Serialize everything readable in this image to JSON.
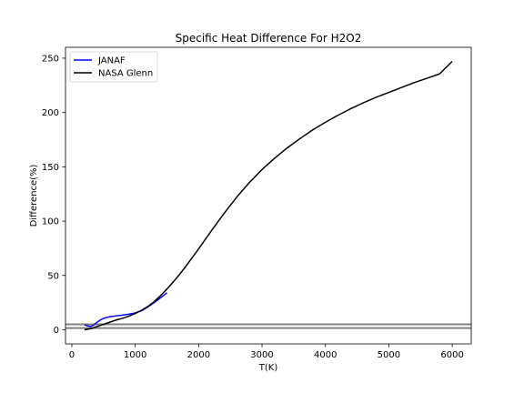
{
  "chart_data": {
    "type": "line",
    "title": "Specific Heat Difference For H2O2",
    "xlabel": "T(K)",
    "ylabel": "Difference(%)",
    "xlim": [
      -100,
      6300
    ],
    "ylim": [
      -13,
      260
    ],
    "xticks": [
      0,
      1000,
      2000,
      3000,
      4000,
      5000,
      6000
    ],
    "yticks": [
      0,
      50,
      100,
      150,
      200,
      250
    ],
    "grid": false,
    "legend_position": "upper left",
    "reference_lines": [
      {
        "y": 1.5,
        "color": "#808080"
      },
      {
        "y": 5.0,
        "color": "#808080"
      }
    ],
    "series": [
      {
        "name": "JANAF",
        "color": "#0000ff",
        "x": [
          200,
          250,
          300,
          350,
          400,
          450,
          500,
          600,
          700,
          800,
          900,
          1000,
          1100,
          1200,
          1300,
          1400,
          1500
        ],
        "y": [
          4.5,
          3.5,
          3.0,
          4.5,
          7.0,
          9.0,
          10.5,
          12.0,
          12.8,
          13.5,
          14.3,
          15.5,
          17.5,
          21.0,
          25.0,
          29.5,
          34.0
        ]
      },
      {
        "name": "NASA Glenn",
        "color": "#000000",
        "x": [
          200,
          250,
          300,
          350,
          400,
          450,
          500,
          600,
          700,
          800,
          900,
          1000,
          1100,
          1200,
          1300,
          1400,
          1500,
          1600,
          1700,
          1800,
          1900,
          2000,
          2200,
          2400,
          2600,
          2800,
          3000,
          3200,
          3400,
          3600,
          3800,
          4000,
          4200,
          4400,
          4600,
          4800,
          5000,
          5200,
          5400,
          5600,
          5800,
          6000
        ],
        "y": [
          0.0,
          0.5,
          1.0,
          2.0,
          3.0,
          4.0,
          5.0,
          7.0,
          9.0,
          10.5,
          12.5,
          15.0,
          18.0,
          21.5,
          26.0,
          31.5,
          37.5,
          44.0,
          51.0,
          58.5,
          66.5,
          74.5,
          91.0,
          107.0,
          122.0,
          135.5,
          147.5,
          158.0,
          167.5,
          176.0,
          184.0,
          191.0,
          197.5,
          203.5,
          209.0,
          214.0,
          218.5,
          223.0,
          227.5,
          231.5,
          235.5,
          247.0
        ]
      }
    ]
  }
}
